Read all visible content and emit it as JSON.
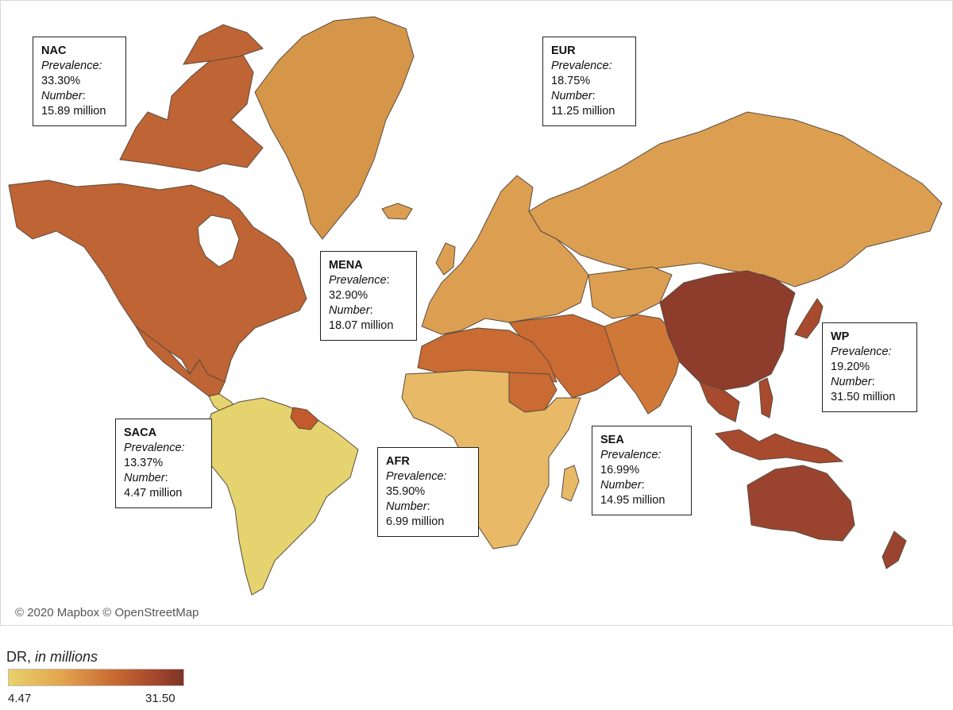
{
  "map": {
    "copyright": "© 2020 Mapbox © OpenStreetMap",
    "colors": {
      "ocean": "#ffffff",
      "border": "#5a4a3f",
      "nac": "#bf6434",
      "greenland": "#d69649",
      "eur": "#dc9f52",
      "mena": "#c96b32",
      "china": "#8e3c2b",
      "india": "#d07838",
      "sea": "#a84a2e",
      "australia": "#9a4430",
      "afr": "#e8b966",
      "saca": "#e5d36f",
      "guyana": "#c25a2d"
    }
  },
  "regions": [
    {
      "id": "nac",
      "name": "NAC",
      "prevalence_label": "Prevalence:",
      "prevalence": "33.30%",
      "number_label": "Number",
      "number_suffix": ":",
      "number": "15.89 million"
    },
    {
      "id": "eur",
      "name": "EUR",
      "prevalence_label": "Prevalence:",
      "prevalence": "18.75%",
      "number_label": "Number",
      "number_suffix": ":",
      "number": "11.25 million"
    },
    {
      "id": "mena",
      "name": "MENA",
      "prevalence_label": "Prevalence",
      "prevalence_suffix": ":",
      "prevalence": "32.90%",
      "number_label": "Number",
      "number_suffix": ":",
      "number": "18.07 million"
    },
    {
      "id": "wp",
      "name": "WP",
      "prevalence_label": "Prevalence:",
      "prevalence": "19.20%",
      "number_label": "Number",
      "number_suffix": ":",
      "number": "31.50 million"
    },
    {
      "id": "saca",
      "name": "SACA",
      "prevalence_label": "Prevalence:",
      "prevalence": "13.37%",
      "number_label": "Number",
      "number_suffix": ":",
      "number": "4.47 million"
    },
    {
      "id": "afr",
      "name": "AFR",
      "prevalence_label": "Prevalence:",
      "prevalence": "35.90%",
      "number_label": "Number",
      "number_suffix": ":",
      "number": "6.99 million"
    },
    {
      "id": "sea",
      "name": "SEA",
      "prevalence_label": "Prevalence:",
      "prevalence": "16.99%",
      "number_label": "Number",
      "number_suffix": ":",
      "number": "14.95 million"
    }
  ],
  "legend": {
    "title_main": "DR,",
    "title_italic": "in millions",
    "min": "4.47",
    "max": "31.50",
    "color_min": "#e8d26a",
    "color_max": "#7d3427"
  }
}
